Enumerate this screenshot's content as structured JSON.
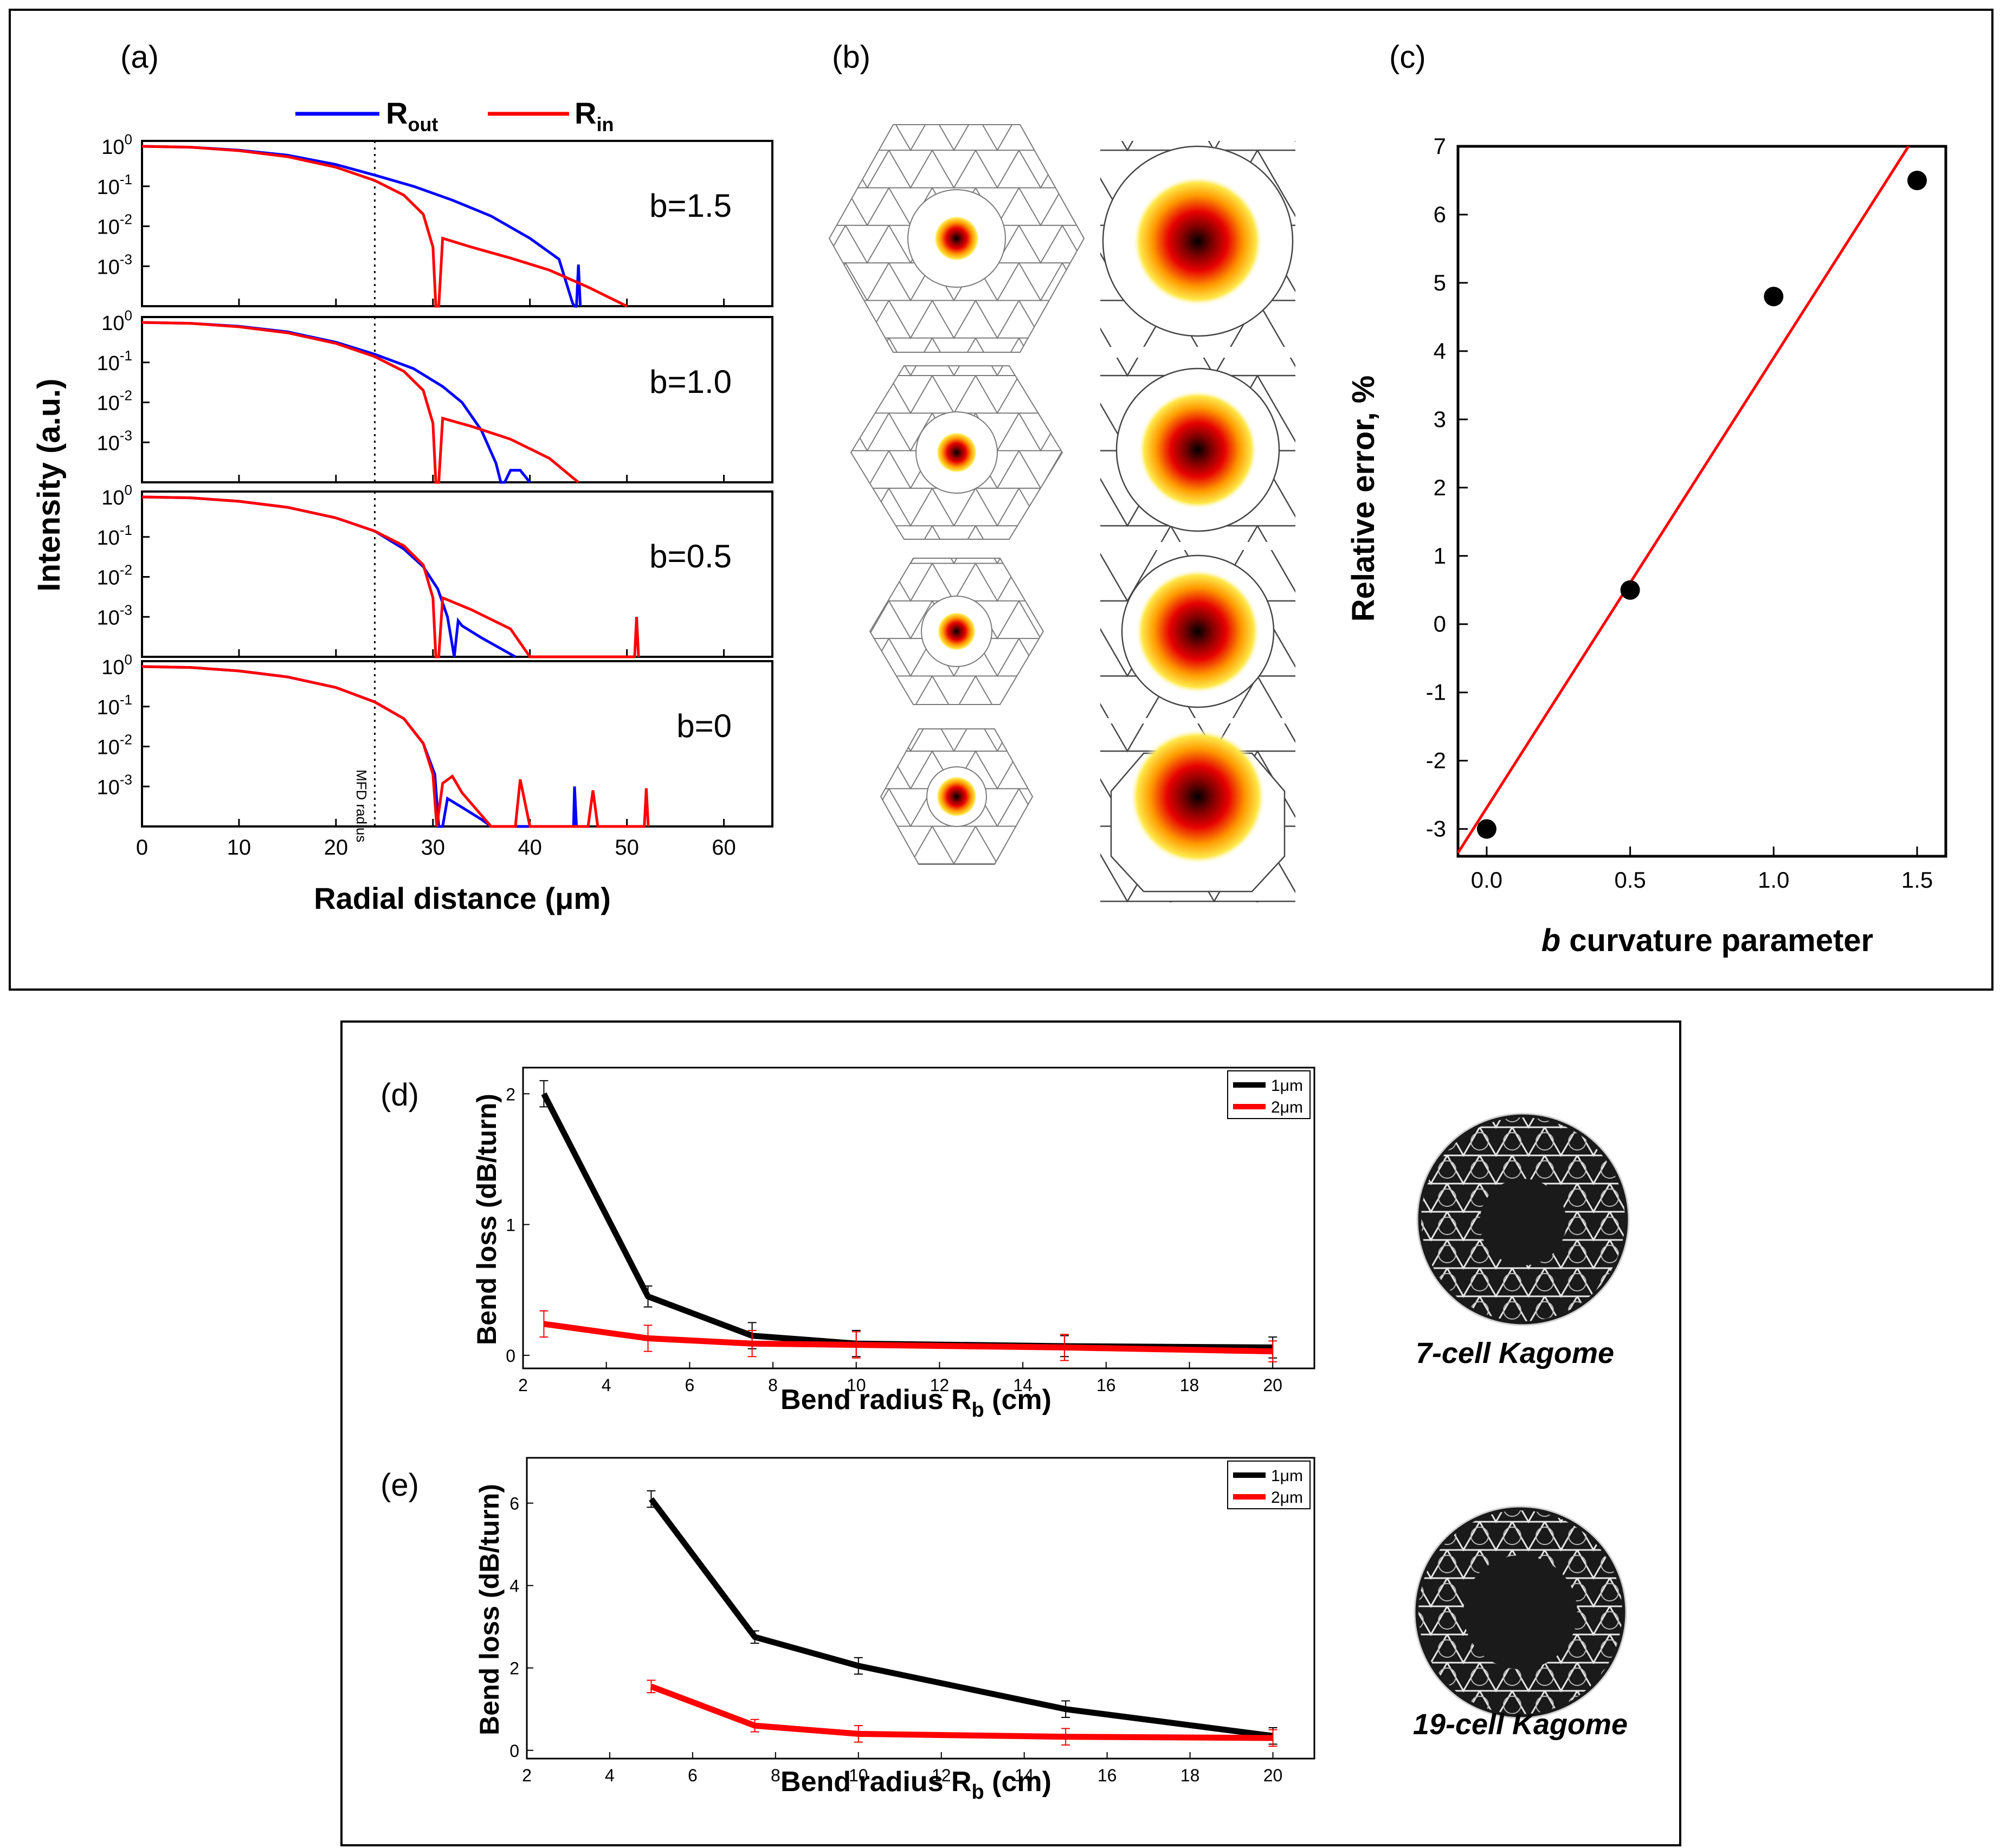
{
  "panel_labels": {
    "a": "(a)",
    "b": "(b)",
    "c": "(c)",
    "d": "(d)",
    "e": "(e)"
  },
  "legend_a": {
    "r_out": "R",
    "r_out_sub": "out",
    "r_in": "R",
    "r_in_sub": "in"
  },
  "colors": {
    "blue": "#0000ff",
    "red": "#ff0000",
    "black": "#000000"
  },
  "panel_a": {
    "y_label": "Intensity (a.u.)",
    "x_label": "Radial distance (μm)",
    "x_ticks": [
      "0",
      "10",
      "20",
      "30",
      "40",
      "50",
      "60"
    ],
    "y_tick_exponents": [
      "0",
      "-1",
      "-2",
      "-3"
    ],
    "mfd_label": "MFD radius",
    "subplots": [
      {
        "label": "b=1.5"
      },
      {
        "label": "b=1.0"
      },
      {
        "label": "b=0.5"
      },
      {
        "label": "b=0"
      }
    ]
  },
  "panel_c": {
    "y_label": "Relative error, %",
    "x_label_italic": "b",
    "x_label_rest": " curvature parameter",
    "x_ticks": [
      "0.0",
      "0.5",
      "1.0",
      "1.5"
    ],
    "y_ticks": [
      "7",
      "6",
      "5",
      "4",
      "3",
      "2",
      "1",
      "0",
      "-1",
      "-2",
      "-3"
    ]
  },
  "panel_d": {
    "y_label": "Bend loss (dB/turn)",
    "x_label": "Bend radius R",
    "x_label_sub": "b",
    "x_label_unit": " (cm)",
    "x_ticks": [
      "2",
      "4",
      "6",
      "8",
      "10",
      "12",
      "14",
      "16",
      "18",
      "20"
    ],
    "y_ticks": [
      "0",
      "1",
      "2"
    ],
    "legend": [
      "1μm",
      "2μm"
    ],
    "image_caption": "7-cell Kagome"
  },
  "panel_e": {
    "y_label": "Bend loss (dB/turn)",
    "x_label": "Bend radius R",
    "x_label_sub": "b",
    "x_label_unit": " (cm)",
    "x_ticks": [
      "2",
      "4",
      "6",
      "8",
      "10",
      "12",
      "14",
      "16",
      "18",
      "20"
    ],
    "y_ticks": [
      "0",
      "2",
      "4",
      "6"
    ],
    "legend": [
      "1μm",
      "2μm"
    ],
    "image_caption": "19-cell Kagome"
  },
  "chart_data": [
    {
      "id": "a",
      "type": "line",
      "title": "",
      "xlabel": "Radial distance (μm)",
      "ylabel": "Intensity (a.u.)",
      "xlim": [
        0,
        65
      ],
      "yscale": "log",
      "ylim": [
        0.0001,
        1
      ],
      "mfd_radius_um": 24,
      "subplots": [
        {
          "b": 1.5,
          "series": [
            {
              "name": "Rout",
              "x": [
                0,
                5,
                10,
                15,
                20,
                24,
                28,
                32,
                36,
                40,
                43,
                44.4,
                44.6,
                44.8,
                45,
                45.2
              ],
              "y": [
                1,
                0.95,
                0.8,
                0.6,
                0.35,
                0.19,
                0.1,
                0.045,
                0.018,
                0.005,
                0.0015,
                0.00012,
                0.0001,
                0.0001,
                0.0011,
                0.0001
              ]
            },
            {
              "name": "Rin",
              "x": [
                0,
                5,
                10,
                15,
                20,
                24,
                27,
                29,
                30,
                30.3,
                30.6,
                31,
                34,
                38,
                42,
                46,
                50
              ],
              "y": [
                1,
                0.95,
                0.78,
                0.55,
                0.3,
                0.14,
                0.06,
                0.02,
                0.003,
                0.0001,
                0.0001,
                0.005,
                0.003,
                0.0016,
                0.0008,
                0.0003,
                0.0001
              ]
            }
          ]
        },
        {
          "b": 1.0,
          "series": [
            {
              "name": "Rout",
              "x": [
                0,
                5,
                10,
                15,
                20,
                24,
                28,
                31,
                33,
                35,
                36.5,
                37,
                37.4,
                38,
                39,
                40
              ],
              "y": [
                1,
                0.95,
                0.8,
                0.58,
                0.32,
                0.16,
                0.07,
                0.025,
                0.01,
                0.002,
                0.0003,
                0.0001,
                0.0001,
                0.0002,
                0.0002,
                0.0001
              ]
            },
            {
              "name": "Rin",
              "x": [
                0,
                5,
                10,
                15,
                20,
                24,
                27,
                29,
                30,
                30.3,
                30.6,
                31,
                34,
                38,
                42,
                45
              ],
              "y": [
                1,
                0.95,
                0.78,
                0.55,
                0.3,
                0.14,
                0.06,
                0.02,
                0.003,
                0.0001,
                0.0001,
                0.004,
                0.0025,
                0.0012,
                0.0004,
                0.0001
              ]
            }
          ]
        },
        {
          "b": 0.5,
          "series": [
            {
              "name": "Rout",
              "x": [
                0,
                5,
                10,
                15,
                20,
                24,
                27,
                29,
                30.5,
                31.5,
                32.2,
                32.6,
                33,
                35,
                38.5
              ],
              "y": [
                1,
                0.95,
                0.78,
                0.55,
                0.3,
                0.14,
                0.05,
                0.018,
                0.005,
                0.001,
                0.0001,
                0.0008,
                0.0006,
                0.0003,
                0.0001
              ]
            },
            {
              "name": "Rin",
              "x": [
                0,
                5,
                10,
                15,
                20,
                24,
                27,
                29,
                30,
                30.3,
                30.6,
                31,
                34,
                38,
                40,
                50.8,
                51,
                51.2
              ],
              "y": [
                1,
                0.95,
                0.78,
                0.55,
                0.3,
                0.14,
                0.06,
                0.02,
                0.003,
                0.0001,
                0.0001,
                0.003,
                0.0015,
                0.0005,
                0.0001,
                0.0001,
                0.001,
                0.0001
              ]
            }
          ]
        },
        {
          "b": 0,
          "series": [
            {
              "name": "Rout",
              "x": [
                0,
                5,
                10,
                15,
                20,
                24,
                27,
                29,
                30.2,
                30.6,
                31,
                31.5,
                33,
                35,
                36,
                44.5,
                44.6,
                44.8,
                45
              ],
              "y": [
                1,
                0.95,
                0.78,
                0.55,
                0.3,
                0.13,
                0.05,
                0.012,
                0.002,
                0.0001,
                0.0001,
                0.0005,
                0.0003,
                0.00015,
                0.0001,
                0.0001,
                0.001,
                0.0001,
                0.0001
              ]
            },
            {
              "name": "Rin",
              "x": [
                0,
                5,
                10,
                15,
                20,
                24,
                27,
                29,
                30,
                30.4,
                31,
                32,
                33,
                36,
                38.5,
                39,
                40,
                46,
                46.5,
                47,
                51.8,
                52,
                52.2
              ],
              "y": [
                1,
                0.95,
                0.78,
                0.55,
                0.3,
                0.13,
                0.05,
                0.012,
                0.002,
                0.0001,
                0.0012,
                0.0018,
                0.0007,
                0.0001,
                0.0001,
                0.0015,
                0.0001,
                0.0001,
                0.0008,
                0.0001,
                0.0001,
                0.0009,
                0.0001
              ]
            }
          ]
        }
      ]
    },
    {
      "id": "c",
      "type": "scatter",
      "title": "",
      "xlabel": "b curvature parameter",
      "ylabel": "Relative error, %",
      "xlim": [
        -0.1,
        1.6
      ],
      "ylim": [
        -3.4,
        7
      ],
      "points": {
        "x": [
          0,
          0.5,
          1.0,
          1.5
        ],
        "y": [
          -3.0,
          0.5,
          4.8,
          6.5
        ]
      },
      "fit_line": {
        "x": [
          -0.1,
          1.47
        ],
        "y": [
          -3.35,
          7.0
        ]
      }
    },
    {
      "id": "d",
      "type": "line",
      "title": "",
      "xlabel": "Bend radius Rb (cm)",
      "ylabel": "Bend loss (dB/turn)",
      "xlim": [
        2,
        21
      ],
      "ylim": [
        -0.1,
        2.2
      ],
      "legend_position": "top-right",
      "series": [
        {
          "name": "1μm",
          "x": [
            2.5,
            5,
            7.5,
            10,
            15,
            20
          ],
          "y": [
            2.0,
            0.45,
            0.15,
            0.09,
            0.07,
            0.06
          ],
          "err": [
            0.1,
            0.08,
            0.1,
            0.1,
            0.08,
            0.08
          ]
        },
        {
          "name": "2μm",
          "x": [
            2.5,
            5,
            7.5,
            10,
            15,
            20
          ],
          "y": [
            0.24,
            0.13,
            0.09,
            0.08,
            0.06,
            0.03
          ],
          "err": [
            0.1,
            0.1,
            0.1,
            0.1,
            0.1,
            0.08
          ]
        }
      ]
    },
    {
      "id": "e",
      "type": "line",
      "title": "",
      "xlabel": "Bend radius Rb (cm)",
      "ylabel": "Bend loss (dB/turn)",
      "xlim": [
        2,
        21
      ],
      "ylim": [
        -0.2,
        7.1
      ],
      "legend_position": "top-right",
      "series": [
        {
          "name": "1μm",
          "x": [
            5,
            7.5,
            10,
            15,
            20
          ],
          "y": [
            6.1,
            2.75,
            2.05,
            1.0,
            0.35
          ],
          "err": [
            0.2,
            0.15,
            0.2,
            0.2,
            0.2
          ]
        },
        {
          "name": "2μm",
          "x": [
            5,
            7.5,
            10,
            15,
            20
          ],
          "y": [
            1.55,
            0.6,
            0.4,
            0.33,
            0.3
          ],
          "err": [
            0.15,
            0.15,
            0.2,
            0.2,
            0.2
          ]
        }
      ]
    }
  ]
}
